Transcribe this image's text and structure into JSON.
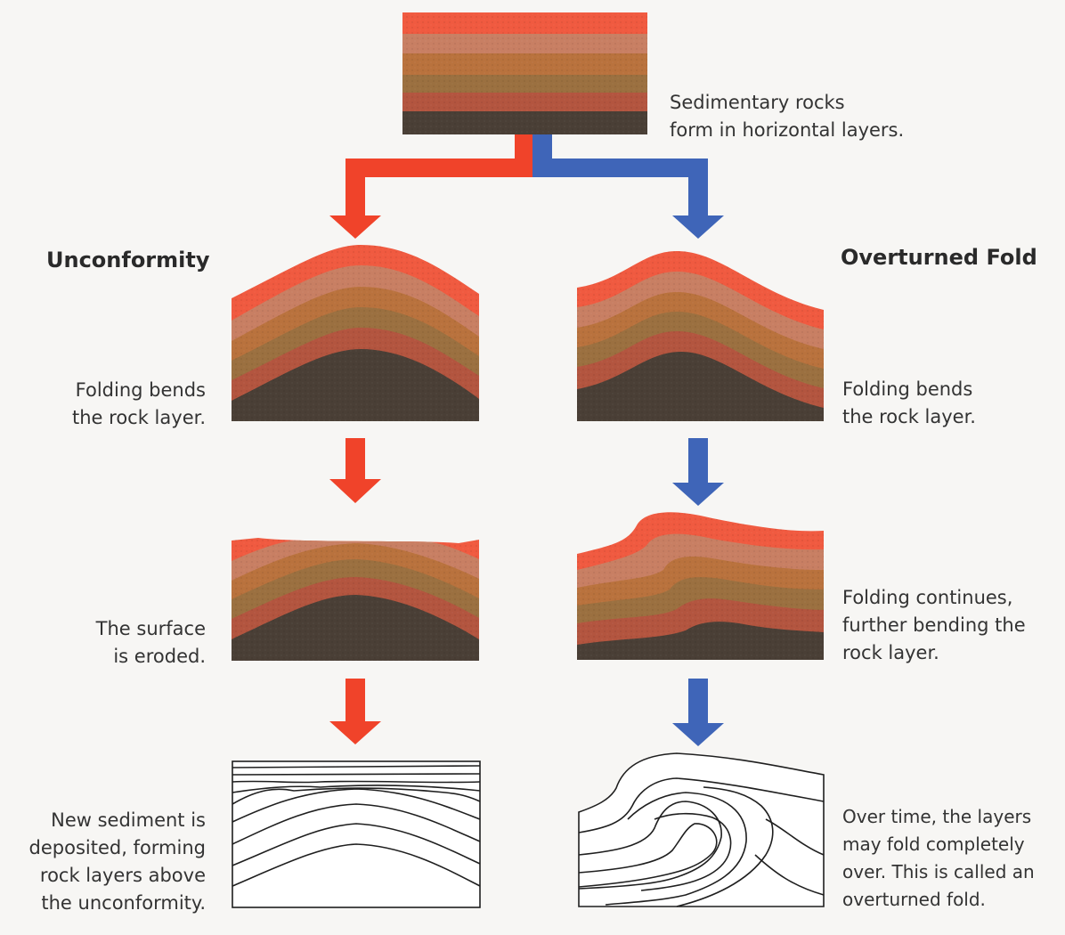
{
  "headings": {
    "left": "Unconformity",
    "right": "Overturned Fold"
  },
  "captions": {
    "top": [
      "Sedimentary rocks",
      "form in horizontal layers."
    ],
    "left_fold": [
      "Folding bends",
      "the rock layer."
    ],
    "left_erode": [
      "The surface",
      "is eroded."
    ],
    "left_deposit": [
      "New sediment is",
      "deposited, forming",
      "rock layers above",
      "the unconformity."
    ],
    "right_fold": [
      "Folding bends",
      "the rock layer."
    ],
    "right_continue": [
      "Folding continues,",
      "further bending the",
      "rock layer."
    ],
    "right_overturn": [
      "Over time, the layers",
      "may fold completely",
      "over. This is called an",
      "overturned fold."
    ]
  },
  "colors": {
    "left_arrow": "#f0432a",
    "right_arrow": "#3f65b8",
    "layer_top": "#f05a40",
    "layer_2": "#c87f63",
    "layer_3": "#b9723d",
    "layer_4": "#9b7040",
    "layer_5": "#b3553f",
    "bedrock": "#4a3f36"
  }
}
